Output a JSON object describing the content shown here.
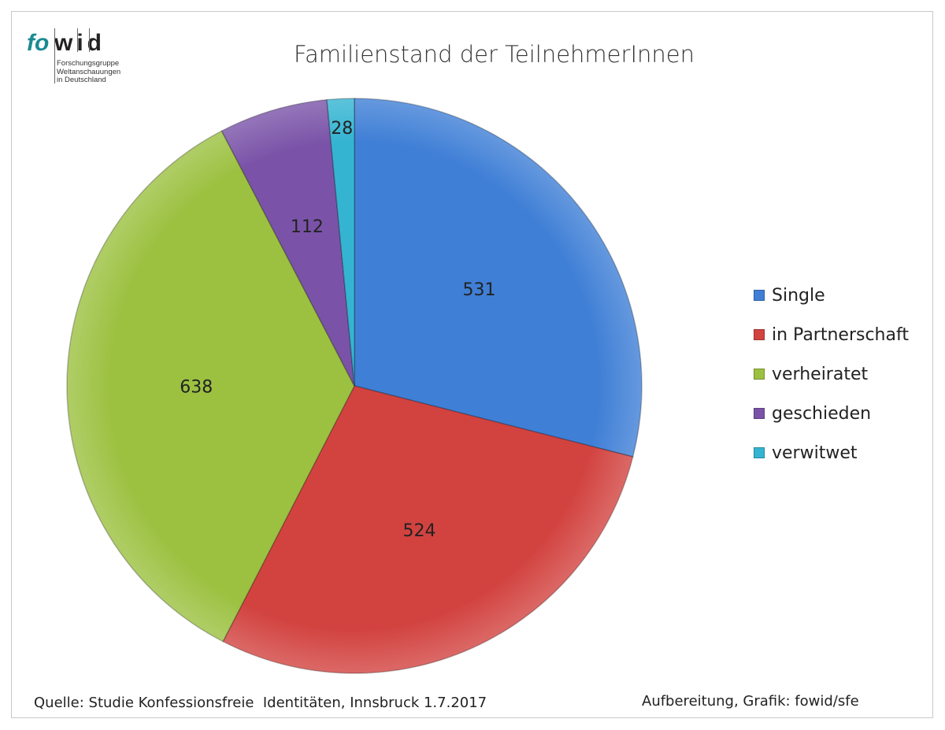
{
  "chart_data": {
    "type": "pie",
    "title": "Familienstand der TeilnehmerInnen",
    "categories": [
      "Single",
      "in Partnerschaft",
      "verheiratet",
      "geschieden",
      "verwitwet"
    ],
    "values": [
      531,
      524,
      638,
      112,
      28
    ],
    "data_labels": [
      "531",
      "524",
      "638",
      "112",
      "28"
    ],
    "colors": [
      "#3f7fd6",
      "#d24340",
      "#9cc141",
      "#7a53a8",
      "#35b4d2"
    ],
    "legend_placement": "right",
    "start_angle": "12 o'clock, clockwise"
  },
  "logo": {
    "brand": "fowid",
    "brand_a": "fo",
    "brand_b": "wid",
    "subtitle": [
      "Forschungsgruppe",
      "Weltanschauungen",
      "in Deutschland"
    ]
  },
  "footer": {
    "source": "Quelle: Studie Konfessionsfreie  Identitäten, Innsbruck 1.7.2017",
    "credit": "Aufbereitung, Grafik: fowid/sfe"
  }
}
